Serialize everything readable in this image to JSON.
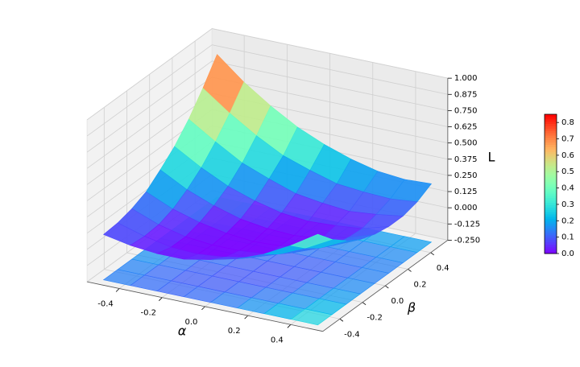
{
  "chart_data": {
    "type": "surface",
    "colormap": "rainbow",
    "xlabel": "α",
    "ylabel": "β",
    "zlabel": "L",
    "xlim": [
      -0.55,
      0.55
    ],
    "ylim": [
      -0.55,
      0.55
    ],
    "zlim": [
      -0.25,
      1.0
    ],
    "xticks": [
      -0.4,
      -0.2,
      {
        "value": 0,
        "label": "0.0"
      },
      0.2,
      0.4
    ],
    "yticks": [
      -0.4,
      -0.2,
      {
        "value": 0,
        "label": "0.0"
      },
      0.2,
      0.4
    ],
    "zticks": [
      {
        "value": -0.25,
        "label": "-0.250"
      },
      -0.125,
      {
        "value": 0,
        "label": "0.000"
      },
      0.125,
      {
        "value": 0.25,
        "label": "0.250"
      },
      0.375,
      {
        "value": 0.5,
        "label": "0.500"
      },
      0.625,
      {
        "value": 0.75,
        "label": "0.750"
      },
      0.875,
      {
        "value": 1,
        "label": "1.000"
      }
    ],
    "grid": true,
    "x": [
      -0.5,
      -0.375,
      -0.25,
      -0.125,
      0,
      0.125,
      0.25,
      0.375,
      0.5
    ],
    "y": [
      -0.5,
      -0.375,
      -0.25,
      -0.125,
      0,
      0.125,
      0.25,
      0.375,
      0.5
    ],
    "z": [
      [
        0.1,
        0.06,
        0.04,
        0.04,
        0.08,
        0.13,
        0.21,
        0.32,
        0.45
      ],
      [
        0.11,
        0.05,
        0.01,
        0.0,
        0.02,
        0.06,
        0.13,
        0.22,
        0.33
      ],
      [
        0.14,
        0.06,
        0.01,
        -0.01,
        -0.01,
        0.01,
        0.06,
        0.14,
        0.24
      ],
      [
        0.19,
        0.1,
        0.04,
        0.0,
        -0.02,
        -0.01,
        0.03,
        0.08,
        0.17
      ],
      [
        0.28,
        0.17,
        0.09,
        0.03,
        0.0,
        -0.01,
        0.01,
        0.06,
        0.13
      ],
      [
        0.38,
        0.26,
        0.16,
        0.09,
        0.04,
        0.02,
        0.03,
        0.05,
        0.11
      ],
      [
        0.51,
        0.38,
        0.26,
        0.18,
        0.11,
        0.08,
        0.06,
        0.08,
        0.11
      ],
      [
        0.67,
        0.52,
        0.39,
        0.28,
        0.21,
        0.15,
        0.13,
        0.12,
        0.14
      ],
      [
        0.85,
        0.68,
        0.54,
        0.42,
        0.33,
        0.26,
        0.21,
        0.19,
        0.2
      ]
    ],
    "colorbar": {
      "lim": [
        0,
        0.85
      ],
      "ticks": [
        {
          "value": 0,
          "label": "0.0"
        },
        0.1,
        0.2,
        0.3,
        0.4,
        0.5,
        0.6,
        0.7,
        0.8
      ]
    }
  }
}
